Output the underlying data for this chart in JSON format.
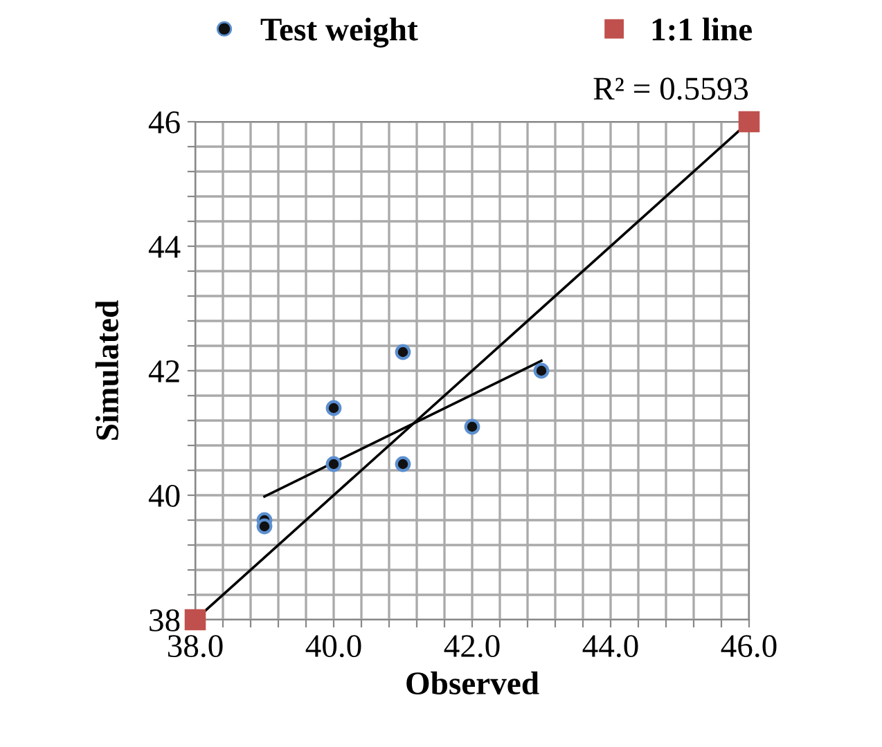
{
  "chart_data": {
    "type": "scatter",
    "xlabel": "Observed",
    "ylabel": "Simulated",
    "series": [
      {
        "name": "Test weight",
        "color": "#111111",
        "x": [
          39,
          39,
          40,
          40,
          41,
          41,
          42,
          43
        ],
        "values": [
          39.6,
          39.5,
          41.4,
          40.5,
          42.3,
          40.5,
          41.1,
          42.0
        ],
        "marker": "circle"
      },
      {
        "name": "1:1 line",
        "type": "line",
        "color": "#c0504d",
        "x": [
          38,
          46
        ],
        "values": [
          38,
          46
        ],
        "marker": "square"
      },
      {
        "type": "line",
        "color": "#000000",
        "x": [
          39,
          43
        ],
        "values": [
          39.98,
          42.16
        ],
        "marker": "none"
      }
    ],
    "annotations": [
      {
        "text": "R² = 0.5593",
        "x": 46,
        "y": 46
      }
    ],
    "xlim": [
      38,
      46
    ],
    "ylim": [
      38,
      46
    ],
    "xticks": [
      {
        "value": 38,
        "label": "38.0"
      },
      {
        "value": 38.4,
        "label": null
      },
      {
        "value": 38.8,
        "label": null
      },
      {
        "value": 39.2,
        "label": null
      },
      {
        "value": 39.6,
        "label": null
      },
      {
        "value": 40,
        "label": "40.0"
      },
      {
        "value": 40.4,
        "label": null
      },
      {
        "value": 40.8,
        "label": null
      },
      {
        "value": 41.2,
        "label": null
      },
      {
        "value": 41.6,
        "label": null
      },
      {
        "value": 42,
        "label": "42.0"
      },
      {
        "value": 42.4,
        "label": null
      },
      {
        "value": 42.8,
        "label": null
      },
      {
        "value": 43.2,
        "label": null
      },
      {
        "value": 43.6,
        "label": null
      },
      {
        "value": 44,
        "label": "44.0"
      },
      {
        "value": 44.4,
        "label": null
      },
      {
        "value": 44.8,
        "label": null
      },
      {
        "value": 45.2,
        "label": null
      },
      {
        "value": 45.6,
        "label": null
      },
      {
        "value": 46,
        "label": "46.0"
      }
    ],
    "yticks": [
      38,
      {
        "value": 38.4,
        "label": null
      },
      {
        "value": 38.8,
        "label": null
      },
      {
        "value": 39.2,
        "label": null
      },
      {
        "value": 39.6,
        "label": null
      },
      40,
      {
        "value": 40.4,
        "label": null
      },
      {
        "value": 40.8,
        "label": null
      },
      {
        "value": 41.2,
        "label": null
      },
      {
        "value": 41.6,
        "label": null
      },
      42,
      {
        "value": 42.4,
        "label": null
      },
      {
        "value": 42.8,
        "label": null
      },
      {
        "value": 43.2,
        "label": null
      },
      {
        "value": 43.6,
        "label": null
      },
      44,
      {
        "value": 44.4,
        "label": null
      },
      {
        "value": 44.8,
        "label": null
      },
      {
        "value": 45.2,
        "label": null
      },
      {
        "value": 45.6,
        "label": null
      },
      46
    ],
    "grid": true,
    "legend": "top"
  }
}
